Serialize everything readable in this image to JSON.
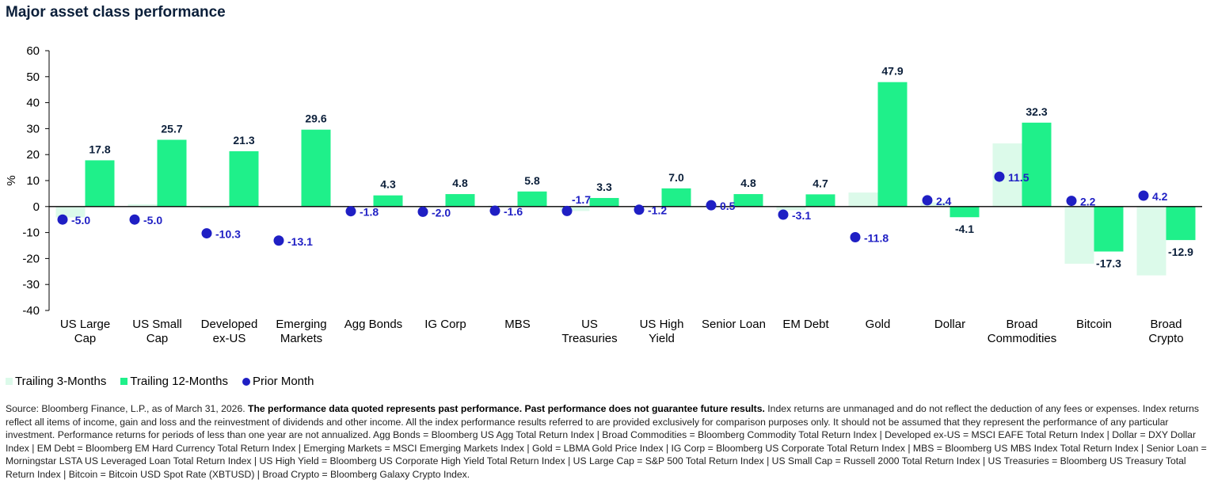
{
  "title": "Major asset class performance",
  "chart_data": {
    "type": "bar",
    "title": "Major asset class performance",
    "ylabel": "%",
    "ylim": [
      -40,
      60
    ],
    "yticks": [
      60,
      50,
      40,
      30,
      20,
      10,
      0,
      -10,
      -20,
      -30,
      -40
    ],
    "grid": false,
    "legend_position": "bottom-left",
    "categories": [
      [
        "US Large",
        "Cap"
      ],
      [
        "US Small",
        "Cap"
      ],
      [
        "Developed",
        "ex-US"
      ],
      [
        "Emerging",
        "Markets"
      ],
      [
        "Agg Bonds"
      ],
      [
        "IG Corp"
      ],
      [
        "MBS"
      ],
      [
        "US",
        "Treasuries"
      ],
      [
        "US High",
        "Yield"
      ],
      [
        "Senior Loan"
      ],
      [
        "EM Debt"
      ],
      [
        "Gold"
      ],
      [
        "Dollar"
      ],
      [
        "Broad",
        "Commodities"
      ],
      [
        "Bitcoin"
      ],
      [
        "Broad",
        "Crypto"
      ]
    ],
    "series": [
      {
        "name": "Trailing 3-Months",
        "kind": "bar",
        "color": "#dcfaea",
        "values": [
          -4.2,
          0.9,
          -0.8,
          0.2,
          0.0,
          -0.3,
          0.4,
          -1.7,
          0.2,
          -0.2,
          -1.4,
          5.4,
          1.6,
          24.3,
          -22.0,
          -26.5
        ],
        "labels": [
          "",
          "",
          "",
          "",
          "",
          "",
          "",
          "-1.7",
          "",
          "",
          "",
          "",
          "",
          "",
          "",
          ""
        ]
      },
      {
        "name": "Trailing 12-Months",
        "kind": "bar",
        "color": "#1ff08a",
        "values": [
          17.8,
          25.7,
          21.3,
          29.6,
          4.3,
          4.8,
          5.8,
          3.3,
          7.0,
          4.8,
          4.7,
          47.9,
          -4.1,
          32.3,
          -17.3,
          -12.9
        ],
        "labels": [
          "17.8",
          "25.7",
          "21.3",
          "29.6",
          "4.3",
          "4.8",
          "5.8",
          "3.3",
          "7.0",
          "4.8",
          "4.7",
          "47.9",
          "-4.1",
          "32.3",
          "-17.3",
          "-12.9"
        ]
      },
      {
        "name": "Prior Month",
        "kind": "point",
        "color": "#1f1fc4",
        "values": [
          -5.0,
          -5.0,
          -10.3,
          -13.1,
          -1.8,
          -2.0,
          -1.6,
          -1.7,
          -1.2,
          0.5,
          -3.1,
          -11.8,
          2.4,
          11.5,
          2.2,
          4.2
        ],
        "labels": [
          "-5.0",
          "-5.0",
          "-10.3",
          "-13.1",
          "-1.8",
          "-2.0",
          "-1.6",
          "",
          "-1.2",
          "0.5",
          "-3.1",
          "-11.8",
          "2.4",
          "11.5",
          "2.2",
          "4.2"
        ]
      }
    ]
  },
  "source": {
    "prefix": "Source: Bloomberg Finance, L.P., as of March 31, 2026. ",
    "bold": "The performance data quoted represents past performance. Past performance does not guarantee future results.",
    "rest": " Index returns are unmanaged and do not reflect the deduction of any fees or expenses. Index returns reflect all items of income, gain and loss and the reinvestment of dividends and other income. All the index performance results referred to are provided exclusively for comparison purposes only. It should not be assumed that they represent the performance of any particular investment. Performance returns for periods of less than one year are not annualized. Agg Bonds = Bloomberg US Agg Total Return Index | Broad Commodities = Bloomberg Commodity Total Return Index | Developed ex-US = MSCI EAFE Total Return Index | Dollar = DXY Dollar Index | EM Debt = Bloomberg EM Hard Currency Total Return Index | Emerging Markets = MSCI Emerging Markets Index | Gold = LBMA Gold Price Index | IG Corp = Bloomberg US Corporate Total Return Index | MBS = Bloomberg US MBS Index Total Return Index | Senior Loan = Morningstar LSTA US Leveraged Loan Total Return Index | US High Yield = Bloomberg US Corporate High Yield Total Return Index | US Large Cap = S&P 500 Total Return Index | US Small Cap = Russell 2000 Total Return Index | US Treasuries = Bloomberg US Treasury Total Return Index | Bitcoin = Bitcoin USD Spot Rate (XBTUSD) | Broad Crypto = Bloomberg Galaxy Crypto Index."
  }
}
